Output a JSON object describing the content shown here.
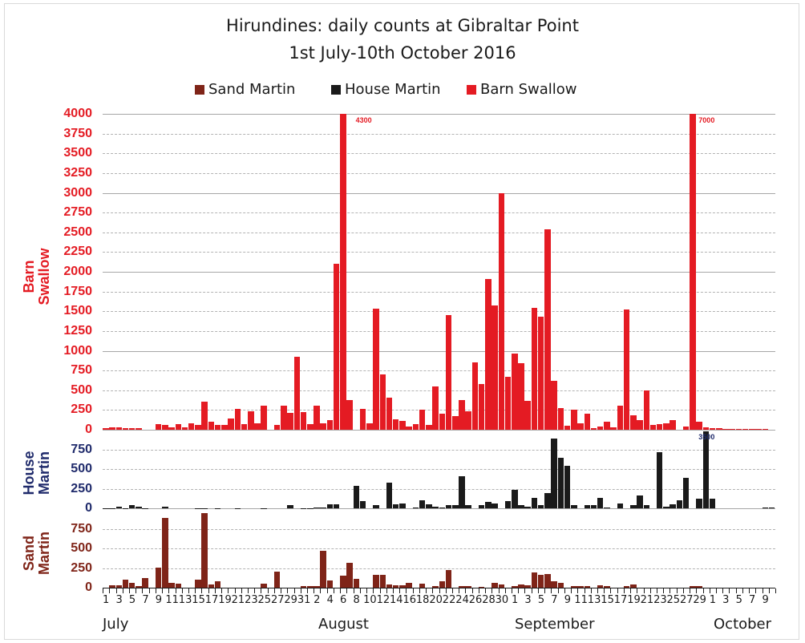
{
  "chart_data": {
    "type": "bar",
    "title": "Hirundines: daily counts at Gibraltar Point",
    "subtitle": "1st July-10th October 2016",
    "legend": [
      {
        "name": "Sand Martin",
        "color": "#7f2418"
      },
      {
        "name": "House Martin",
        "color": "#1a1a1a"
      },
      {
        "name": "Barn Swallow",
        "color": "#e41b23"
      }
    ],
    "legend_position": "top",
    "grid": true,
    "xlabel": "",
    "months": [
      {
        "label": "July",
        "start_day_index": 0
      },
      {
        "label": "August",
        "start_day_index": 31
      },
      {
        "label": "September",
        "start_day_index": 62
      },
      {
        "label": "October",
        "start_day_index": 92
      }
    ],
    "x_tick_labels": [
      "1",
      "3",
      "5",
      "7",
      "9",
      "11",
      "13",
      "15",
      "17",
      "19",
      "21",
      "23",
      "25",
      "27",
      "29",
      "31",
      "2",
      "4",
      "6",
      "8",
      "10",
      "12",
      "14",
      "16",
      "18",
      "20",
      "22",
      "24",
      "26",
      "28",
      "30",
      "1",
      "3",
      "5",
      "7",
      "9",
      "11",
      "13",
      "15",
      "17",
      "19",
      "21",
      "23",
      "25",
      "27",
      "29",
      "1",
      "3",
      "5",
      "7",
      "9"
    ],
    "panels": [
      {
        "name": "Barn Swallow",
        "ylabel": "Barn Swallow",
        "ylabel_lines": [
          "Barn",
          "Swallow"
        ],
        "color": "#e41b23",
        "ylim": [
          0,
          4000
        ],
        "yticks": [
          0,
          250,
          500,
          750,
          1000,
          1250,
          1500,
          1750,
          2000,
          2250,
          2500,
          2750,
          3000,
          3250,
          3500,
          3750,
          4000
        ],
        "annotations": [
          {
            "day_index": 37,
            "text": "4300"
          },
          {
            "day_index": 89,
            "text": "7000"
          }
        ],
        "values": [
          20,
          30,
          30,
          20,
          20,
          20,
          0,
          0,
          70,
          60,
          30,
          70,
          30,
          80,
          60,
          360,
          100,
          60,
          60,
          140,
          260,
          70,
          230,
          80,
          310,
          0,
          60,
          310,
          210,
          920,
          220,
          70,
          300,
          80,
          120,
          2100,
          4300,
          380,
          0,
          260,
          80,
          1530,
          700,
          410,
          130,
          110,
          40,
          70,
          250,
          60,
          550,
          200,
          1450,
          170,
          380,
          230,
          850,
          580,
          1910,
          1570,
          3000,
          670,
          970,
          840,
          370,
          1540,
          1430,
          2540,
          620,
          270,
          50,
          250,
          80,
          200,
          20,
          40,
          100,
          30,
          310,
          1520,
          180,
          120,
          500,
          60,
          70,
          80,
          120,
          0,
          40,
          7000,
          100,
          30,
          20,
          20,
          10,
          10,
          10,
          10,
          10,
          10,
          10,
          0
        ]
      },
      {
        "name": "House Martin",
        "ylabel": "House Martin",
        "ylabel_lines": [
          "House",
          "Martin"
        ],
        "color": "#1a1a1a",
        "ylim": [
          0,
          1000
        ],
        "yticks": [
          0,
          250,
          500,
          750
        ],
        "annotations": [
          {
            "day_index": 89,
            "text": "3500"
          }
        ],
        "values": [
          5,
          5,
          20,
          5,
          40,
          20,
          5,
          0,
          0,
          20,
          0,
          0,
          0,
          0,
          5,
          5,
          0,
          5,
          0,
          0,
          5,
          0,
          0,
          0,
          5,
          0,
          0,
          0,
          40,
          0,
          5,
          5,
          10,
          10,
          50,
          50,
          0,
          0,
          290,
          90,
          0,
          40,
          0,
          330,
          50,
          60,
          0,
          10,
          100,
          50,
          20,
          10,
          40,
          40,
          410,
          40,
          0,
          40,
          80,
          60,
          0,
          90,
          240,
          40,
          20,
          130,
          40,
          200,
          890,
          650,
          550,
          40,
          0,
          40,
          40,
          130,
          10,
          0,
          60,
          0,
          40,
          160,
          40,
          0,
          720,
          20,
          50,
          100,
          390,
          0,
          120,
          3500,
          120,
          0,
          0,
          0,
          0,
          0,
          0,
          0,
          10,
          10
        ]
      },
      {
        "name": "Sand Martin",
        "ylabel": "Sand Martin",
        "ylabel_lines": [
          "Sand",
          "Martin"
        ],
        "color": "#7f2418",
        "ylim": [
          0,
          1000
        ],
        "yticks": [
          0,
          250,
          500,
          750
        ],
        "annotations": [],
        "values": [
          0,
          30,
          30,
          100,
          60,
          20,
          120,
          0,
          260,
          890,
          60,
          50,
          0,
          0,
          100,
          960,
          40,
          80,
          0,
          0,
          0,
          0,
          0,
          0,
          50,
          0,
          210,
          0,
          0,
          0,
          20,
          20,
          20,
          470,
          90,
          0,
          150,
          320,
          110,
          0,
          0,
          160,
          160,
          40,
          30,
          30,
          60,
          0,
          50,
          0,
          20,
          80,
          230,
          0,
          20,
          20,
          0,
          10,
          0,
          60,
          40,
          0,
          20,
          40,
          30,
          200,
          160,
          180,
          80,
          60,
          0,
          20,
          20,
          20,
          0,
          30,
          20,
          0,
          0,
          20,
          40,
          0,
          0,
          0,
          0,
          0,
          0,
          0,
          0,
          20,
          20,
          0,
          0,
          0,
          0,
          0,
          0,
          0,
          0,
          0,
          0,
          0
        ]
      }
    ]
  }
}
